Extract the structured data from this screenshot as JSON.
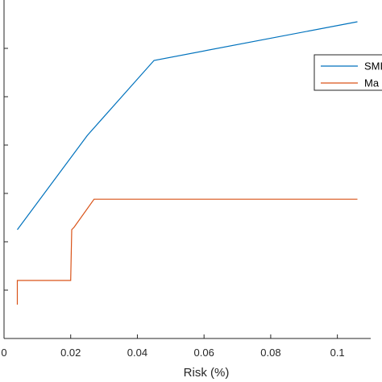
{
  "chart_data": {
    "type": "line",
    "xlabel": "Risk (%)",
    "ylabel": "",
    "title": "",
    "xlim": [
      0,
      0.11
    ],
    "x_ticks": [
      0,
      0.02,
      0.04,
      0.06,
      0.08,
      0.1
    ],
    "x_tick_labels": [
      "0",
      "0.02",
      "0.04",
      "0.06",
      "0.08",
      "0.1"
    ],
    "ylim": [
      0,
      7
    ],
    "y_ticks": [
      1,
      2,
      3,
      4,
      5,
      6
    ],
    "grid": false,
    "legend_position": "top-right",
    "series": [
      {
        "name": "SMI",
        "color": "#0072BD",
        "points": [
          [
            0.004,
            2.25
          ],
          [
            0.025,
            4.2
          ],
          [
            0.045,
            5.75
          ],
          [
            0.106,
            6.55
          ]
        ]
      },
      {
        "name": "Ma",
        "color": "#D95319",
        "points": [
          [
            0.004,
            0.7
          ],
          [
            0.004,
            1.2
          ],
          [
            0.02,
            1.2
          ],
          [
            0.0203,
            2.25
          ],
          [
            0.021,
            2.3
          ],
          [
            0.027,
            2.88
          ],
          [
            0.106,
            2.88
          ]
        ]
      }
    ]
  }
}
